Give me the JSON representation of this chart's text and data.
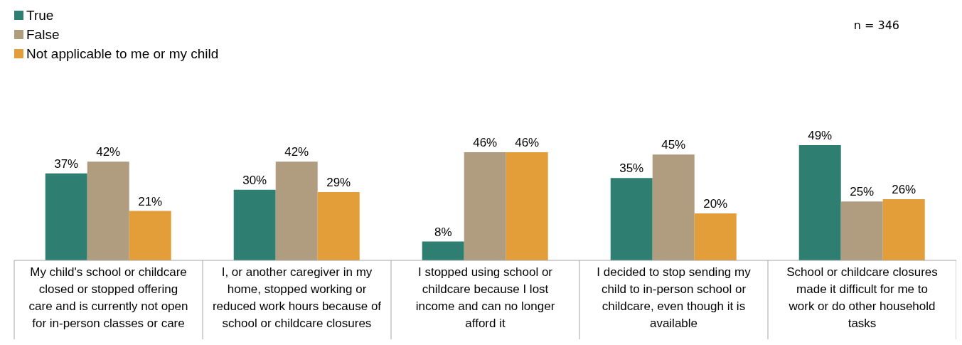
{
  "chart_data": {
    "type": "bar",
    "categories": [
      "My child's school or childcare closed or stopped offering care and is currently not open for in-person classes or care",
      "I, or another caregiver in my home, stopped working or reduced work hours because of school or childcare closures",
      "I stopped using school or childcare because I lost income and can no longer afford it",
      "I decided to stop sending my child to in-person school or childcare, even though it is available",
      "School or childcare closures made it difficult for me to work or do other household tasks"
    ],
    "series": [
      {
        "name": "True",
        "color": "#2e7f72",
        "values": [
          37,
          30,
          8,
          35,
          49
        ],
        "value_labels": [
          "37%",
          "30%",
          "8%",
          "35%",
          "49%"
        ]
      },
      {
        "name": "False",
        "color": "#b09d7f",
        "values": [
          42,
          42,
          46,
          45,
          25
        ],
        "value_labels": [
          "42%",
          "42%",
          "46%",
          "45%",
          "25%"
        ]
      },
      {
        "name": "Not applicable to me or my child",
        "color": "#e39e3a",
        "values": [
          21,
          29,
          46,
          20,
          26
        ],
        "value_labels": [
          "21%",
          "29%",
          "46%",
          "20%",
          "26%"
        ]
      }
    ],
    "legend": "top left",
    "grid": false,
    "tick_labels": "x",
    "annotations": [
      "n = 346"
    ]
  }
}
